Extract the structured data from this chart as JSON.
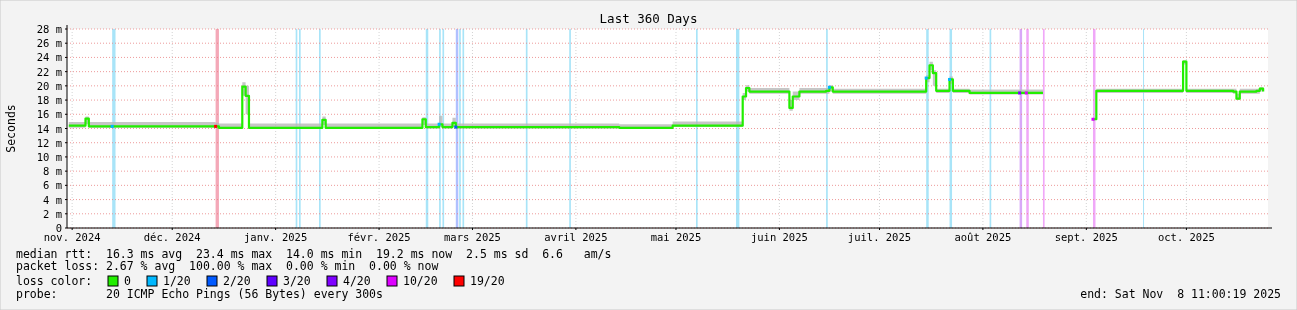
{
  "chart_data": {
    "type": "line",
    "title": "Last 360 Days",
    "ylabel": "Seconds",
    "x": [
      "2024-11-14",
      "2024-11-18",
      "2024-11-19",
      "2024-11-20",
      "2024-12-08",
      "2024-12-28",
      "2024-12-29",
      "2025-01-04",
      "2025-01-05",
      "2025-01-06",
      "2025-01-07",
      "2025-01-28",
      "2025-01-29",
      "2025-01-30",
      "2025-02-27",
      "2025-02-28",
      "2025-03-01",
      "2025-03-05",
      "2025-03-06",
      "2025-03-09",
      "2025-03-10",
      "2025-03-26",
      "2025-04-28",
      "2025-05-13",
      "2025-05-14",
      "2025-06-03",
      "2025-06-04",
      "2025-06-05",
      "2025-06-06",
      "2025-06-17",
      "2025-06-18",
      "2025-06-19",
      "2025-06-21",
      "2025-06-29",
      "2025-06-30",
      "2025-07-01",
      "2025-07-28",
      "2025-07-29",
      "2025-07-30",
      "2025-07-31",
      "2025-08-01",
      "2025-08-04",
      "2025-08-05",
      "2025-08-06",
      "2025-08-11",
      "2025-08-26",
      "2025-09-02",
      "2025-09-03",
      "2025-09-16",
      "2025-09-17",
      "2025-09-18",
      "2025-10-13",
      "2025-10-14",
      "2025-10-15",
      "2025-10-29",
      "2025-10-30",
      "2025-10-31",
      "2025-11-05",
      "2025-11-06",
      "2025-11-07"
    ],
    "series": [
      {
        "name": "0",
        "color": "#22ee00",
        "values": [
          14.4,
          14.4,
          15.4,
          14.3,
          14.3,
          14.3,
          14.1,
          14.1,
          19.9,
          18.6,
          14.1,
          14.1,
          15.2,
          14.1,
          14.1,
          15.3,
          14.2,
          14.6,
          14.2,
          14.8,
          14.2,
          14.2,
          14.1,
          14.1,
          14.4,
          14.4,
          18.5,
          19.7,
          19.2,
          19.2,
          16.9,
          18.5,
          19.2,
          19.3,
          19.8,
          19.2,
          19.2,
          21.1,
          22.9,
          21.8,
          19.3,
          19.3,
          20.9,
          19.3,
          19.0,
          19.0,
          19.0,
          null,
          null,
          15.3,
          19.3,
          19.3,
          23.4,
          19.3,
          19.2,
          18.2,
          19.2,
          19.3,
          19.6,
          19.2
        ],
        "lower": [
          14.1,
          14.1,
          14.6,
          14.1,
          14.1,
          14.1,
          14.0,
          14.0,
          18.6,
          16.0,
          14.0,
          14.0,
          14.5,
          14.0,
          14.0,
          14.5,
          14.0,
          14.2,
          14.0,
          14.2,
          14.0,
          14.0,
          14.0,
          14.0,
          14.2,
          14.2,
          18.0,
          19.2,
          18.9,
          18.9,
          16.5,
          18.0,
          18.9,
          18.9,
          19.2,
          18.9,
          18.9,
          20.5,
          22.2,
          20.0,
          19.0,
          19.0,
          20.3,
          19.0,
          18.8,
          18.8,
          18.8,
          null,
          null,
          15.2,
          19.0,
          19.0,
          23.0,
          19.0,
          18.9,
          18.0,
          18.9,
          18.9,
          19.2,
          18.9
        ],
        "upper": [
          14.9,
          14.9,
          15.7,
          14.9,
          14.9,
          14.8,
          14.7,
          14.7,
          20.5,
          20.0,
          14.7,
          14.7,
          15.7,
          14.7,
          14.7,
          15.6,
          14.7,
          15.8,
          14.7,
          15.5,
          14.7,
          14.7,
          14.6,
          14.6,
          15.0,
          15.0,
          19.0,
          20.1,
          19.7,
          19.7,
          18.0,
          19.2,
          19.7,
          19.7,
          20.1,
          19.6,
          19.6,
          21.5,
          23.4,
          22.2,
          19.6,
          19.6,
          21.3,
          19.6,
          19.5,
          19.5,
          19.4,
          null,
          null,
          15.5,
          19.6,
          19.6,
          23.6,
          19.6,
          19.6,
          18.9,
          19.6,
          19.6,
          19.8,
          19.6
        ]
      },
      {
        "name": "1/20",
        "type": "scatter",
        "color": "#00b8ff",
        "marker": "square",
        "x": [
          "2024-11-27",
          "2025-03-05",
          "2025-06-30",
          "2025-07-29",
          "2025-08-05"
        ],
        "values": [
          14.3,
          14.6,
          19.8,
          21.1,
          20.9
        ]
      },
      {
        "name": "2/20",
        "type": "scatter",
        "color": "#0059ff",
        "marker": "square",
        "x": [
          "2025-03-10"
        ],
        "values": [
          14.2
        ]
      },
      {
        "name": "3/20",
        "type": "scatter",
        "color": "#5e00ff",
        "marker": "square",
        "values": [
          null,
          null,
          null,
          null,
          null,
          null,
          null,
          null,
          null,
          null,
          null,
          null,
          null,
          null,
          null,
          null,
          null,
          null,
          null,
          null,
          null,
          null,
          null,
          null,
          null,
          null,
          null,
          null,
          null,
          null,
          null,
          null,
          null,
          null,
          null,
          null,
          null,
          null,
          null,
          null,
          null,
          null,
          null,
          null,
          null,
          null,
          null,
          null,
          null,
          null,
          null,
          null,
          null,
          null,
          null,
          null,
          null,
          null,
          null,
          null
        ]
      },
      {
        "name": "4/20",
        "type": "scatter",
        "color": "#7e00ff",
        "marker": "square",
        "x": [
          "2025-08-26"
        ],
        "values": [
          19.0
        ]
      },
      {
        "name": "10/20",
        "type": "scatter",
        "color": "#dd00ff",
        "marker": "square",
        "x": [
          "2025-08-28",
          "2025-09-17"
        ],
        "values": [
          19.0,
          15.3
        ]
      },
      {
        "name": "19/20",
        "type": "scatter",
        "color": "#ff0000",
        "marker": "square",
        "x": [
          "2024-12-28"
        ],
        "values": [
          14.3
        ]
      }
    ],
    "bands": [
      {
        "axis": "x",
        "from": "2024-11-27",
        "to": "2024-11-28",
        "color": "#a8e4f8"
      },
      {
        "axis": "x",
        "from": "2024-12-28",
        "to": "2024-12-29",
        "color": "#f4a8b8"
      },
      {
        "axis": "x",
        "from": "2025-01-21",
        "to": "2025-01-21T12:00",
        "color": "#a8e4f8"
      },
      {
        "axis": "x",
        "from": "2025-01-22",
        "to": "2025-01-22T12:00",
        "color": "#a8e4f8"
      },
      {
        "axis": "x",
        "from": "2025-01-28",
        "to": "2025-01-28T12:00",
        "color": "#a8e4f8"
      },
      {
        "axis": "x",
        "from": "2025-03-01",
        "to": "2025-03-01T18:00",
        "color": "#a8e4f8"
      },
      {
        "axis": "x",
        "from": "2025-03-05",
        "to": "2025-03-05T12:00",
        "color": "#a8e4f8"
      },
      {
        "axis": "x",
        "from": "2025-03-06",
        "to": "2025-03-06T12:00",
        "color": "#a8e4f8"
      },
      {
        "axis": "x",
        "from": "2025-03-10",
        "to": "2025-03-10T18:00",
        "color": "#b0c0ff"
      },
      {
        "axis": "x",
        "from": "2025-03-11",
        "to": "2025-03-11T12:00",
        "color": "#a8e4f8"
      },
      {
        "axis": "x",
        "from": "2025-03-12",
        "to": "2025-03-12T12:00",
        "color": "#a8e4f8"
      },
      {
        "axis": "x",
        "from": "2025-03-31",
        "to": "2025-03-31T12:00",
        "color": "#a8e4f8"
      },
      {
        "axis": "x",
        "from": "2025-04-13",
        "to": "2025-04-13T12:00",
        "color": "#a8e4f8"
      },
      {
        "axis": "x",
        "from": "2025-05-21",
        "to": "2025-05-21T12:00",
        "color": "#a8e4f8"
      },
      {
        "axis": "x",
        "from": "2025-06-02",
        "to": "2025-06-03",
        "color": "#a8e4f8"
      },
      {
        "axis": "x",
        "from": "2025-06-29",
        "to": "2025-06-29T12:00",
        "color": "#a8e4f8"
      },
      {
        "axis": "x",
        "from": "2025-07-29",
        "to": "2025-07-29T18:00",
        "color": "#a8e4f8"
      },
      {
        "axis": "x",
        "from": "2025-08-05",
        "to": "2025-08-05T18:00",
        "color": "#a8e4f8"
      },
      {
        "axis": "x",
        "from": "2025-08-17",
        "to": "2025-08-17T12:00",
        "color": "#a8e4f8"
      },
      {
        "axis": "x",
        "from": "2025-08-26",
        "to": "2025-08-26T18:00",
        "color": "#d8a8f8"
      },
      {
        "axis": "x",
        "from": "2025-08-28",
        "to": "2025-08-28T18:00",
        "color": "#f0a8f8"
      },
      {
        "axis": "x",
        "from": "2025-09-02",
        "to": "2025-09-02T12:00",
        "color": "#f0a8f8"
      },
      {
        "axis": "x",
        "from": "2025-09-17",
        "to": "2025-09-17T18:00",
        "color": "#f0a8f8"
      },
      {
        "axis": "x",
        "from": "2025-10-02",
        "to": "2025-10-02T06:00",
        "color": "#a8e4f8"
      }
    ],
    "xlim": [
      "2024-11-13T11:00",
      "2025-11-08T11:00"
    ],
    "xticks": [
      {
        "value": "2024-11-15",
        "label": "nov. 2024"
      },
      {
        "value": "2024-12-15",
        "label": "déc. 2024"
      },
      {
        "value": "2025-01-15",
        "label": "janv. 2025"
      },
      {
        "value": "2025-02-15",
        "label": "févr. 2025"
      },
      {
        "value": "2025-03-15",
        "label": "mars 2025"
      },
      {
        "value": "2025-04-15",
        "label": "avril 2025"
      },
      {
        "value": "2025-05-15",
        "label": "mai 2025"
      },
      {
        "value": "2025-06-15",
        "label": "juin 2025"
      },
      {
        "value": "2025-07-15",
        "label": "juil. 2025"
      },
      {
        "value": "2025-08-15",
        "label": "août 2025"
      },
      {
        "value": "2025-09-15",
        "label": "sept. 2025"
      },
      {
        "value": "2025-10-15",
        "label": "oct. 2025"
      }
    ],
    "ylim": [
      0,
      28
    ],
    "yticks": [
      0,
      {
        "value": 2,
        "label": "2 m"
      },
      {
        "value": 4,
        "label": "4 m"
      },
      {
        "value": 6,
        "label": "6 m"
      },
      {
        "value": 8,
        "label": "8 m"
      },
      {
        "value": 10,
        "label": "10 m"
      },
      {
        "value": 12,
        "label": "12 m"
      },
      {
        "value": 14,
        "label": "14 m"
      },
      {
        "value": 16,
        "label": "16 m"
      },
      {
        "value": 18,
        "label": "18 m"
      },
      {
        "value": 20,
        "label": "20 m"
      },
      {
        "value": 22,
        "label": "22 m"
      },
      {
        "value": 24,
        "label": "24 m"
      },
      {
        "value": 26,
        "label": "26 m"
      },
      {
        "value": 28,
        "label": "28 m"
      }
    ],
    "grid": true,
    "legend": "bottom",
    "legend_title": "loss color:",
    "annotations": [
      "median rtt:  16.3 ms avg  23.4 ms max  14.0 ms min  19.2 ms now  2.5 ms sd  6.6   am/s",
      "packet loss: 2.67 % avg  100.00 % max  0.00 % min  0.00 % now",
      "probe:       20 ICMP Echo Pings (56 Bytes) every 300s",
      "end: Sat Nov  8 11:00:19 2025"
    ]
  }
}
